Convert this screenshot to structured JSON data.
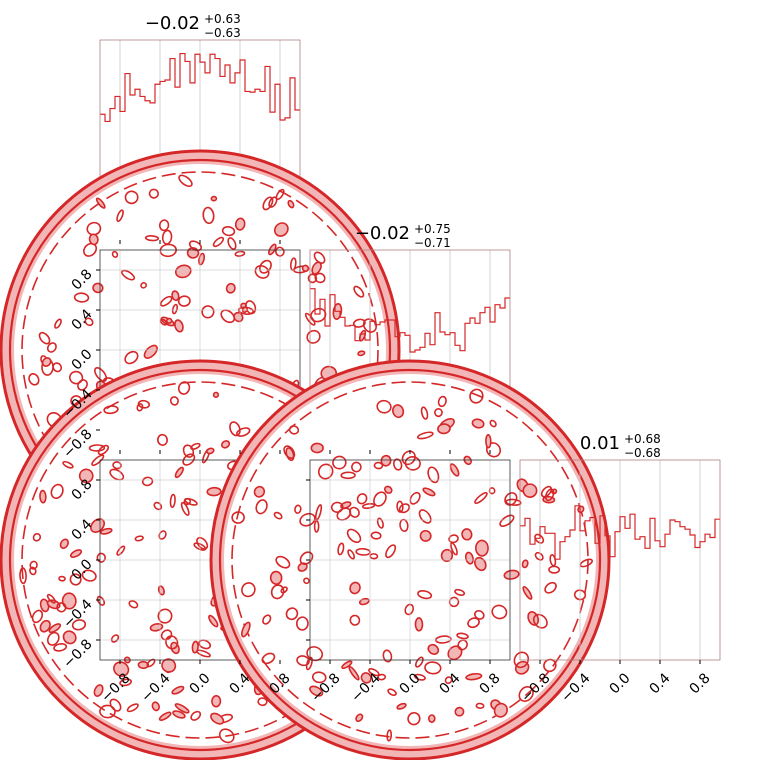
{
  "figure": {
    "type": "corner-plot",
    "colors": {
      "line": "#d62728",
      "fill_light": "#f2b6b7",
      "fill_mid": "#e57373",
      "grid": "#c8c8c8",
      "frame": "#333333",
      "hist_frame": "#b05050"
    }
  },
  "chart_data": {
    "type": "corner",
    "parameters": [
      {
        "title": {
          "median": "−0.02",
          "plus": "+0.63",
          "minus": "−0.63"
        }
      },
      {
        "title": {
          "median": "−0.02",
          "plus": "+0.75",
          "minus": "−0.71"
        }
      },
      {
        "title": {
          "median": "0.01",
          "plus": "+0.68",
          "minus": "−0.68"
        }
      }
    ],
    "axis_range": [
      -1.0,
      1.0
    ],
    "ticks": [
      -0.8,
      -0.4,
      0.0,
      0.4,
      0.8
    ],
    "tick_labels": [
      "−0.8",
      "−0.4",
      "0.0",
      "0.4",
      "0.8"
    ],
    "grid": true,
    "histograms": [
      {
        "param": 0,
        "bins": 40,
        "counts": [
          17.6,
          16.6,
          18.4,
          20.1,
          18.0,
          23.3,
          20.3,
          21.1,
          20.1,
          19.5,
          19.2,
          21.8,
          22.2,
          22.4,
          25.4,
          21.4,
          26.1,
          25.0,
          22.0,
          26.0,
          24.9,
          23.4,
          26.0,
          25.4,
          22.9,
          24.5,
          22.0,
          23.4,
          25.2,
          20.8,
          20.7,
          21.1,
          20.8,
          24.3,
          17.9,
          21.8,
          16.8,
          17.1,
          22.7,
          18.2
        ],
        "ylim": [
          0,
          28
        ]
      },
      {
        "param": 1,
        "bins": 40,
        "counts": [
          24.2,
          20.4,
          22.6,
          18.6,
          23.3,
          20.8,
          19.9,
          18.6,
          18.7,
          16.4,
          17.4,
          16.5,
          19.3,
          18.8,
          19.2,
          19.5,
          19.5,
          17.0,
          17.6,
          17.2,
          14.7,
          15.0,
          15.4,
          17.5,
          15.8,
          20.6,
          17.7,
          17.3,
          17.6,
          15.7,
          14.9,
          19.0,
          19.8,
          19.0,
          20.6,
          21.4,
          19.2,
          21.8,
          21.3,
          22.8
        ],
        "ylim": [
          0,
          30
        ]
      },
      {
        "param": 2,
        "bins": 40,
        "counts": [
          16.1,
          17.0,
          13.9,
          14.6,
          16.0,
          15.2,
          15.2,
          12.1,
          14.2,
          14.8,
          15.6,
          18.5,
          15.5,
          16.7,
          17.1,
          14.0,
          17.3,
          14.9,
          12.4,
          15.4,
          17.2,
          15.8,
          17.5,
          14.5,
          14.8,
          13.4,
          17.0,
          14.3,
          13.6,
          15.1,
          16.8,
          16.6,
          16.0,
          15.7,
          15.0,
          13.5,
          14.2,
          15.1,
          14.7,
          16.9
        ],
        "ylim": [
          0,
          24
        ]
      }
    ],
    "joint_panels": [
      {
        "x_param": 0,
        "y_param": 1,
        "support": "unit-disk",
        "distribution": "uniform"
      },
      {
        "x_param": 0,
        "y_param": 2,
        "support": "unit-disk",
        "distribution": "uniform"
      },
      {
        "x_param": 1,
        "y_param": 2,
        "support": "unit-disk",
        "distribution": "uniform"
      }
    ]
  }
}
